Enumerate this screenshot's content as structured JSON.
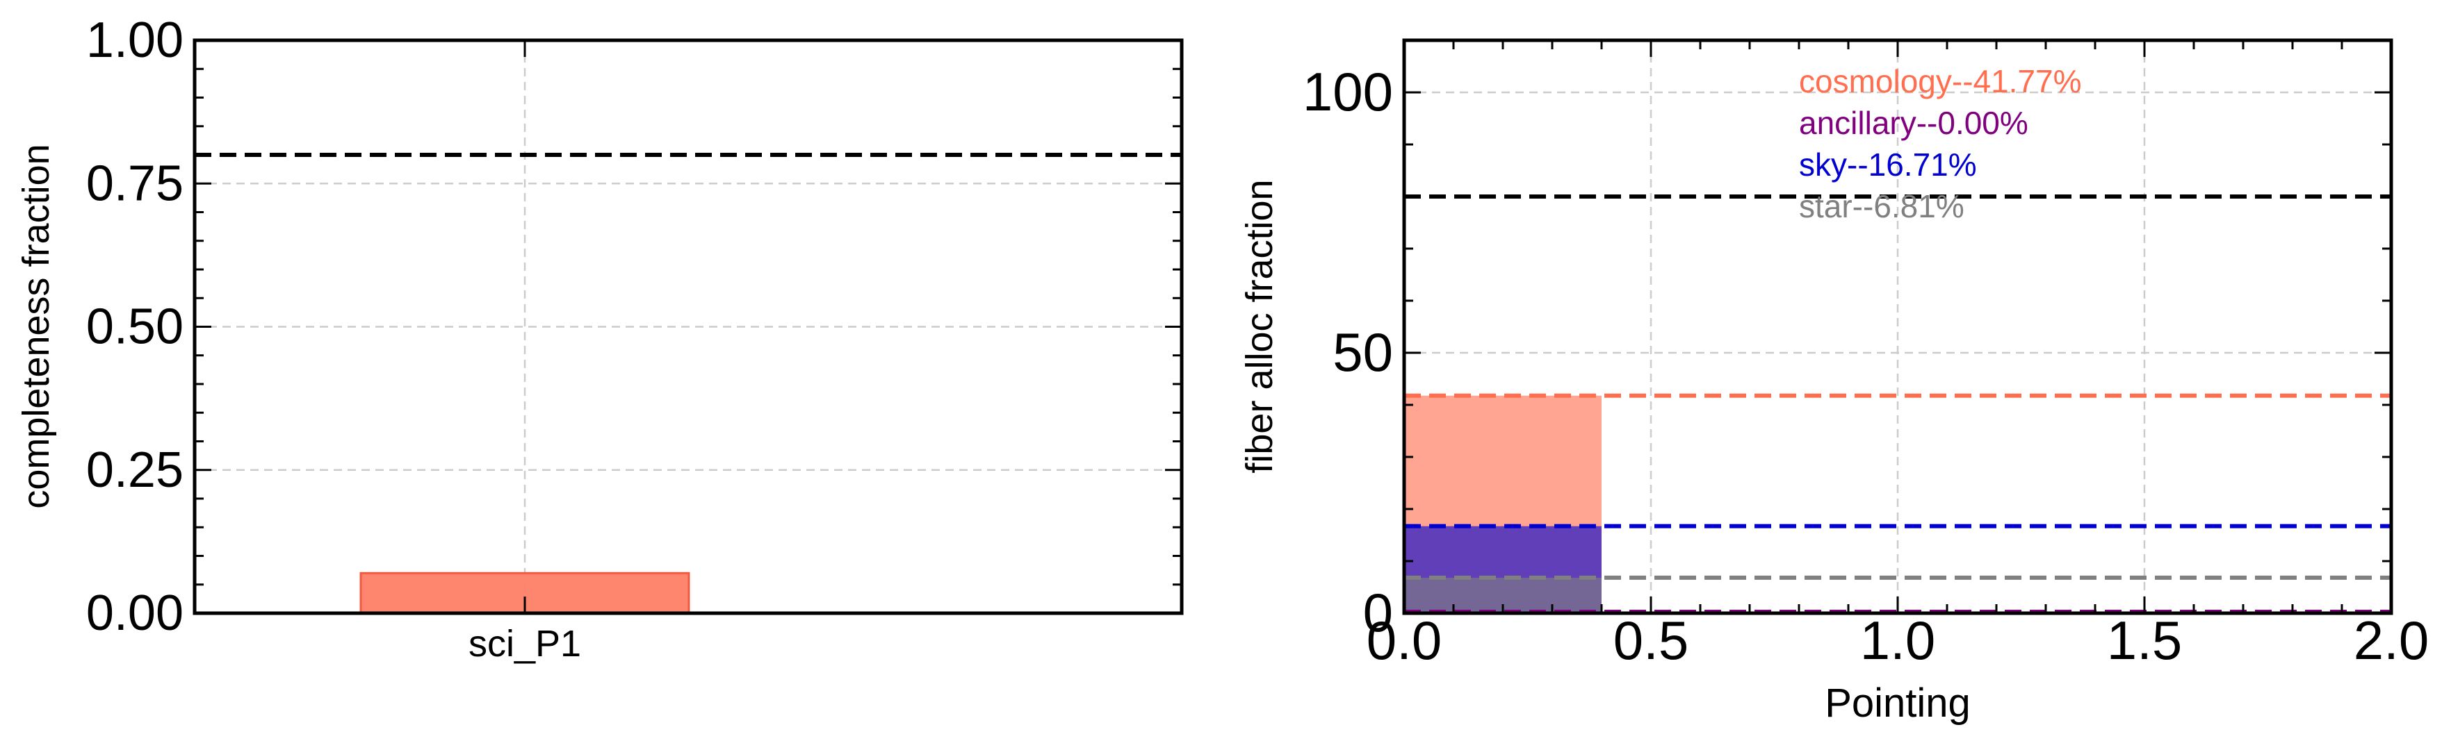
{
  "chart_data": [
    {
      "type": "bar",
      "categories": [
        "sci_P1"
      ],
      "values": [
        0.07
      ],
      "bar_color": "#ff7f66",
      "xlabel": "",
      "ylabel": "completeness fraction",
      "ylim": [
        0.0,
        1.0
      ],
      "yticks": [
        "0.00",
        "0.25",
        "0.50",
        "0.75",
        "1.00"
      ],
      "reference_lines": [
        {
          "y": 0.8,
          "color": "#000000",
          "style": "dashed"
        }
      ],
      "grid": true
    },
    {
      "type": "bar",
      "xlabel": "Pointing",
      "ylabel": "fiber alloc fraction",
      "xlim": [
        0.0,
        2.0
      ],
      "ylim": [
        0,
        110
      ],
      "xticks": [
        "0.0",
        "0.5",
        "1.0",
        "1.5",
        "2.0"
      ],
      "yticks": [
        "0",
        "50",
        "100"
      ],
      "grid": true,
      "series": [
        {
          "name": "cosmology",
          "value": 41.77,
          "color": "#ff6e4f",
          "label": "cosmology--41.77%"
        },
        {
          "name": "ancillary",
          "value": 0.0,
          "color": "#800080",
          "label": "ancillary--0.00%"
        },
        {
          "name": "sky",
          "value": 16.71,
          "color": "#0000d0",
          "label": "sky--16.71%"
        },
        {
          "name": "star",
          "value": 6.81,
          "color": "#808080",
          "label": "star--6.81%"
        }
      ],
      "bar_range": [
        0.0,
        0.4
      ],
      "reference_lines": [
        {
          "y": 80,
          "color": "#000000",
          "style": "dashed"
        }
      ]
    }
  ]
}
